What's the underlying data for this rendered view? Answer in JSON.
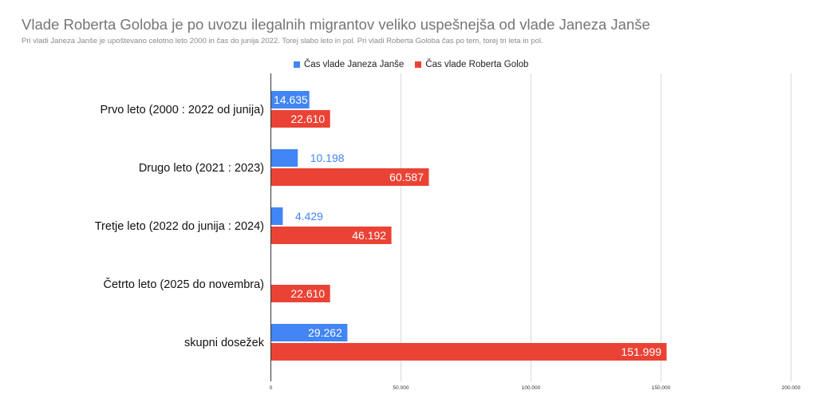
{
  "chart_data": {
    "type": "bar",
    "orientation": "horizontal",
    "title": "Vlade Roberta Goloba je po uvozu ilegalnih migrantov veliko uspešnejša od vlade Janeza Janše",
    "subtitle": "Pri vladi Janeza Janše je upoštevano celotno leto 2000 in čas do junija 2022. Torej slabo leto in pol. Pri vladi Roberta Goloba čas po tem, torej tri leta in pol.",
    "categories": [
      "Prvo leto (2000 : 2022 od junija)",
      "Drugo leto (2021 : 2023)",
      "Tretje leto (2022 do junija : 2024)",
      "Četrto leto (2025 do novembra)",
      "skupni dosežek"
    ],
    "series": [
      {
        "name": "Čas vlade Janeza Janše",
        "color": "#4285f4",
        "values": [
          14635,
          10198,
          4429,
          null,
          29262
        ],
        "labels": [
          "14.635",
          "10.198",
          "4.429",
          "",
          "29.262"
        ]
      },
      {
        "name": "Čas vlade Roberta Golob",
        "color": "#ea4335",
        "values": [
          22610,
          60587,
          46192,
          22610,
          151999
        ],
        "labels": [
          "22.610",
          "60.587",
          "46.192",
          "22.610",
          "151.999"
        ]
      }
    ],
    "xlim": [
      0,
      200000
    ],
    "xticks": [
      0,
      50000,
      100000,
      150000,
      200000
    ],
    "xtick_labels": [
      "0",
      "50.000",
      "100.000",
      "150.000",
      "200.000"
    ],
    "legend_position": "top",
    "grid": true
  }
}
